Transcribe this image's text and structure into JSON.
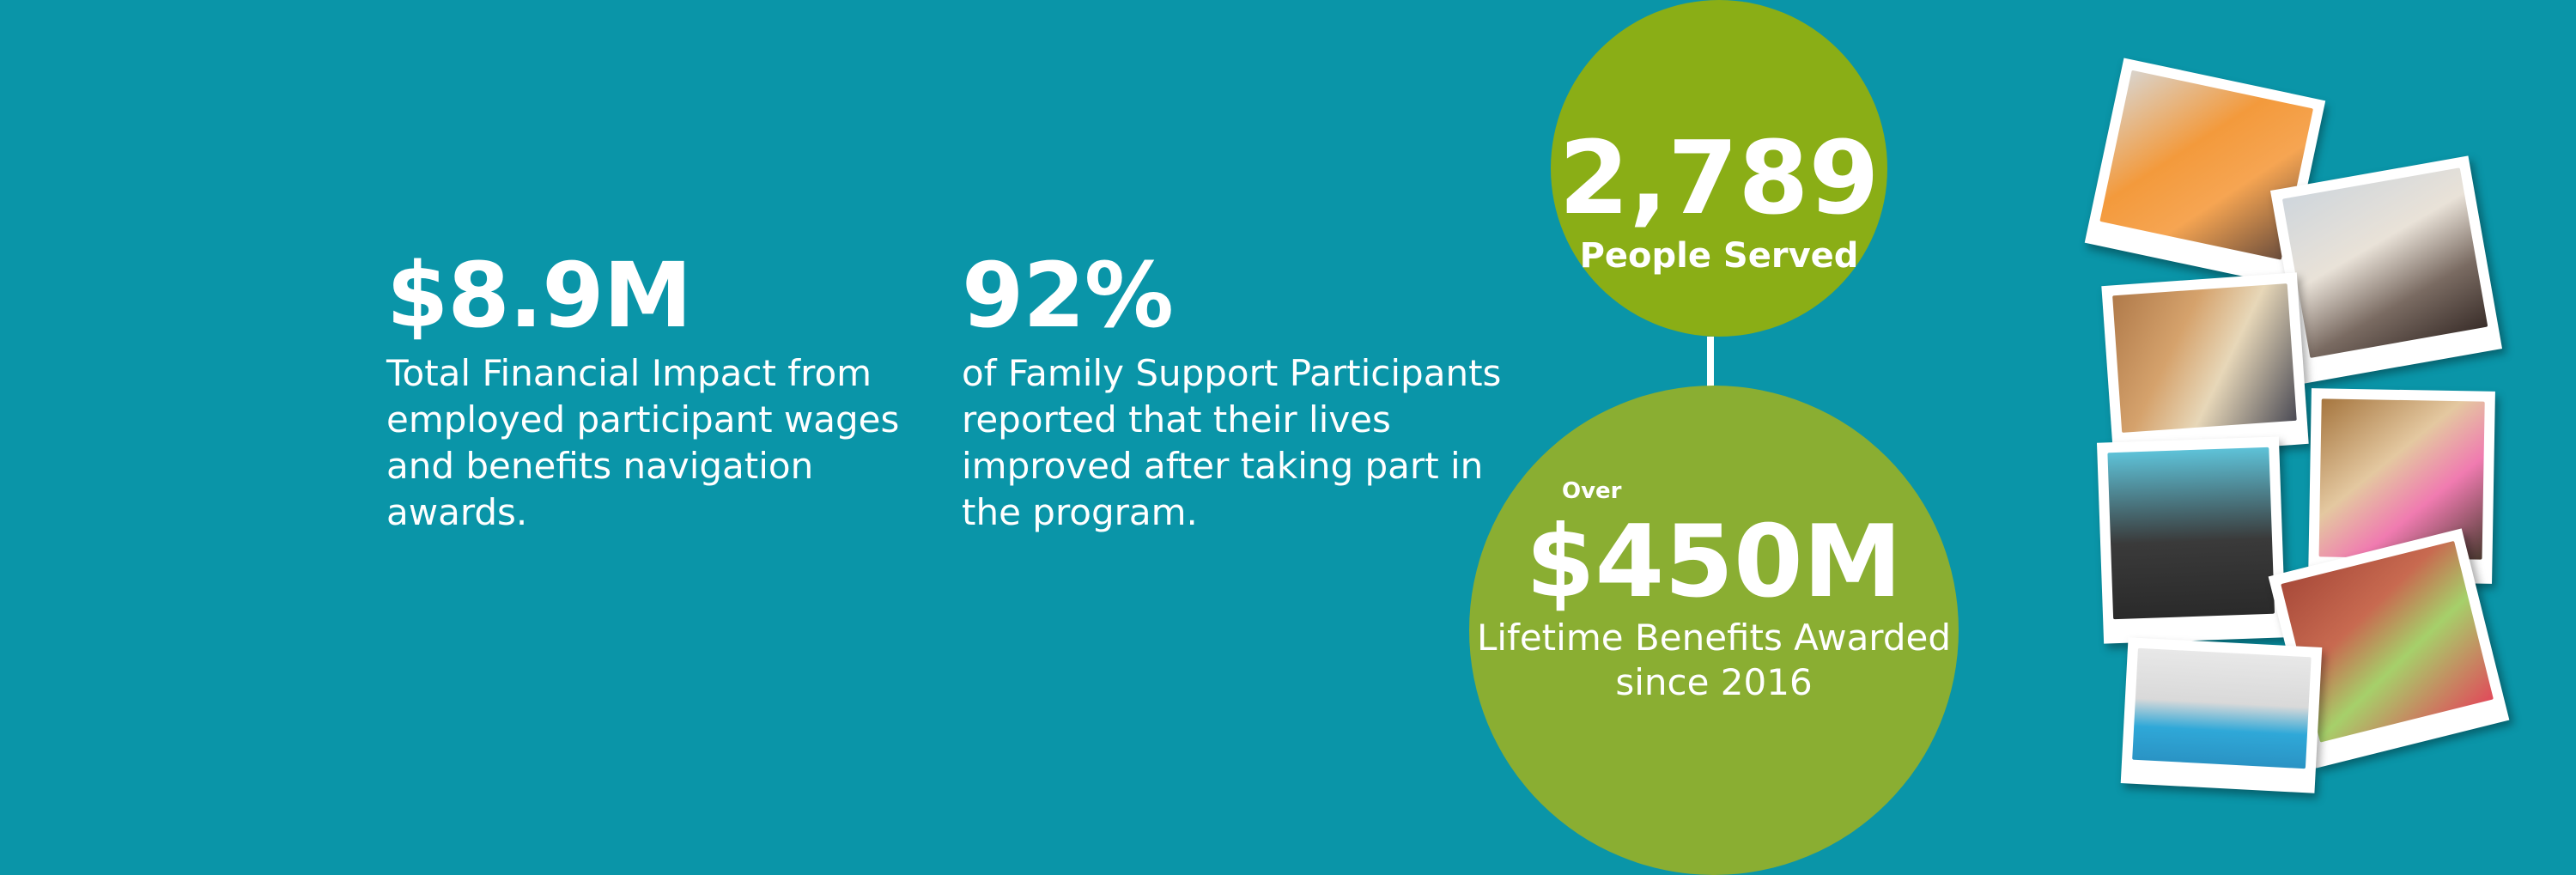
{
  "stats": {
    "impact": {
      "value": "$8.9M",
      "description": "Total Financial Impact from employed participant wages and benefits navigation awards."
    },
    "family": {
      "value": "92%",
      "description": "of Family Support Participants reported that their lives improved after taking part in the program."
    }
  },
  "circles": {
    "people": {
      "value": "2,789",
      "label": "People Served",
      "color": "#8aae16"
    },
    "benefits": {
      "prefix": "Over",
      "value": "$450M",
      "label": "Lifetime Benefits Awarded since 2016",
      "color": "#8aae32"
    }
  },
  "colors": {
    "background": "#0a95a8",
    "text": "#ffffff"
  }
}
